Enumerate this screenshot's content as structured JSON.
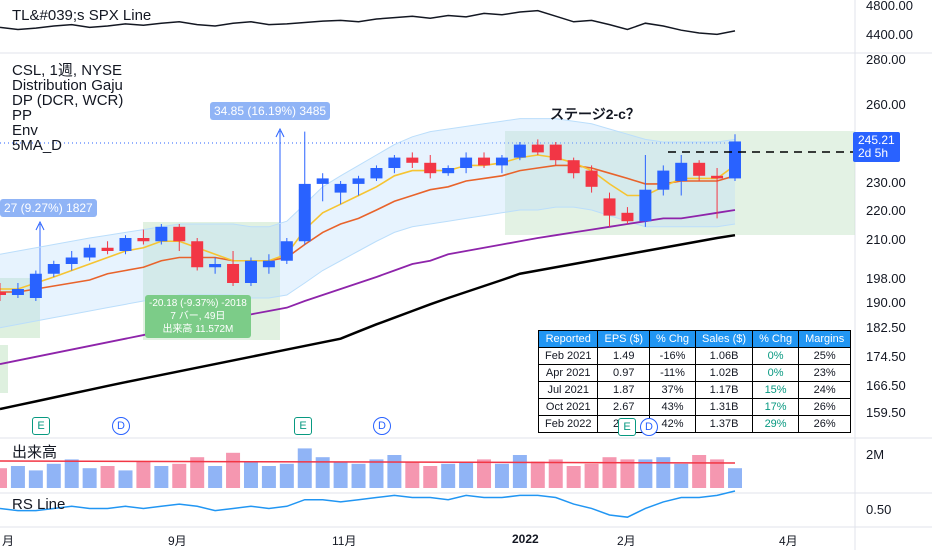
{
  "legend": {
    "spx_line": "TL&#039;s SPX Line",
    "symbol": "CSL, 1週, NYSE",
    "ind1": "Distribution Gaju",
    "ind2": "DP (DCR, WCR)",
    "ind3": "PP",
    "ind4": "Env",
    "ind5": "5MA_D",
    "volume": "出来高",
    "rs_line": "RS Line"
  },
  "annotation": "ステージ2-c？",
  "measures": {
    "m1": "34.85 (16.19%) 3485",
    "m2": "27 (9.27%) 1827",
    "m3_l1": "-20.18 (-9.37%) -2018",
    "m3_l2": "7 バー, 49日",
    "m3_l3": "出来高 11.572M"
  },
  "price_axis": [
    "4800.00",
    "4400.00",
    "280.00",
    "260.00",
    "230.00",
    "220.00",
    "210.00",
    "198.00",
    "190.00",
    "182.50",
    "174.50",
    "166.50",
    "159.50",
    "2M",
    "0.50"
  ],
  "last_price": {
    "value": "245.21",
    "countdown": "2d 5h"
  },
  "time_axis": [
    "月",
    "9月",
    "11月",
    "2022",
    "2月",
    "4月"
  ],
  "events": {
    "e": "E",
    "d": "D"
  },
  "earnings_table": {
    "headers": [
      "Reported",
      "EPS ($)",
      "% Chg",
      "Sales ($)",
      "% Chg",
      "Margins"
    ],
    "rows": [
      [
        "Feb 2021",
        "1.49",
        "-16%",
        "1.06B",
        "0%",
        "25%"
      ],
      [
        "Apr 2021",
        "0.97",
        "-11%",
        "1.02B",
        "0%",
        "23%"
      ],
      [
        "Jul 2021",
        "1.87",
        "37%",
        "1.17B",
        "15%",
        "24%"
      ],
      [
        "Oct 2021",
        "2.67",
        "43%",
        "1.31B",
        "17%",
        "26%"
      ],
      [
        "Feb 2022",
        "2.??",
        "42%",
        "1.37B",
        "29%",
        "26%"
      ]
    ]
  },
  "colors": {
    "up": "#2962ff",
    "down": "#f23645",
    "ema10": "#e8632b",
    "ema5": "#f6c431",
    "ma_purple": "#8e24aa",
    "ma_black": "#000000",
    "band": "#bbdefb",
    "vol_up": "#90b4f6",
    "vol_down": "#f597b0",
    "rs": "#2196f3"
  },
  "chart_data": {
    "type": "candlestick",
    "title": "CSL, 1週, NYSE",
    "ylim": [
      155,
      285
    ],
    "candles": [
      {
        "o": 193,
        "h": 196,
        "l": 190,
        "c": 192
      },
      {
        "o": 192,
        "h": 196,
        "l": 191,
        "c": 194
      },
      {
        "o": 191,
        "h": 200,
        "l": 190,
        "c": 199
      },
      {
        "o": 199,
        "h": 203,
        "l": 198,
        "c": 202
      },
      {
        "o": 202,
        "h": 206,
        "l": 200,
        "c": 204
      },
      {
        "o": 204,
        "h": 208,
        "l": 203,
        "c": 207
      },
      {
        "o": 207,
        "h": 209,
        "l": 205,
        "c": 206
      },
      {
        "o": 206,
        "h": 211,
        "l": 205,
        "c": 210
      },
      {
        "o": 210,
        "h": 213,
        "l": 208,
        "c": 209
      },
      {
        "o": 209,
        "h": 215,
        "l": 208,
        "c": 214
      },
      {
        "o": 214,
        "h": 215,
        "l": 206,
        "c": 209
      },
      {
        "o": 209,
        "h": 210,
        "l": 200,
        "c": 201
      },
      {
        "o": 201,
        "h": 204,
        "l": 199,
        "c": 202
      },
      {
        "o": 202,
        "h": 206,
        "l": 195,
        "c": 196
      },
      {
        "o": 196,
        "h": 204,
        "l": 195,
        "c": 203
      },
      {
        "o": 201,
        "h": 205,
        "l": 199,
        "c": 203
      },
      {
        "o": 203,
        "h": 210,
        "l": 202,
        "c": 209
      },
      {
        "o": 209,
        "h": 249,
        "l": 208,
        "c": 229
      },
      {
        "o": 229,
        "h": 233,
        "l": 223,
        "c": 231
      },
      {
        "o": 226,
        "h": 230,
        "l": 222,
        "c": 229
      },
      {
        "o": 229,
        "h": 232,
        "l": 225,
        "c": 231
      },
      {
        "o": 231,
        "h": 236,
        "l": 230,
        "c": 235
      },
      {
        "o": 235,
        "h": 240,
        "l": 233,
        "c": 239
      },
      {
        "o": 239,
        "h": 241,
        "l": 235,
        "c": 237
      },
      {
        "o": 237,
        "h": 240,
        "l": 231,
        "c": 233
      },
      {
        "o": 233,
        "h": 236,
        "l": 232,
        "c": 235
      },
      {
        "o": 235,
        "h": 241,
        "l": 233,
        "c": 239
      },
      {
        "o": 239,
        "h": 241,
        "l": 235,
        "c": 236
      },
      {
        "o": 236,
        "h": 240,
        "l": 233,
        "c": 239
      },
      {
        "o": 239,
        "h": 245,
        "l": 238,
        "c": 244
      },
      {
        "o": 244,
        "h": 246,
        "l": 240,
        "c": 241
      },
      {
        "o": 244,
        "h": 245,
        "l": 236,
        "c": 238
      },
      {
        "o": 238,
        "h": 239,
        "l": 231,
        "c": 233
      },
      {
        "o": 234,
        "h": 236,
        "l": 226,
        "c": 228
      },
      {
        "o": 224,
        "h": 226,
        "l": 214,
        "c": 218
      },
      {
        "o": 219,
        "h": 221,
        "l": 215,
        "c": 216
      },
      {
        "o": 216,
        "h": 240,
        "l": 214,
        "c": 227
      },
      {
        "o": 227,
        "h": 236,
        "l": 225,
        "c": 234
      },
      {
        "o": 230,
        "h": 240,
        "l": 225,
        "c": 237
      },
      {
        "o": 237,
        "h": 238,
        "l": 230,
        "c": 232
      },
      {
        "o": 232,
        "h": 235,
        "l": 217,
        "c": 231
      },
      {
        "o": 231,
        "h": 248,
        "l": 230,
        "c": 245.21
      }
    ],
    "ema5": [
      194,
      194,
      196,
      198,
      200,
      202,
      204,
      206,
      207,
      209,
      209,
      207,
      205,
      203,
      203,
      203,
      205,
      213,
      219,
      222,
      225,
      228,
      232,
      234,
      234,
      234,
      236,
      236,
      237,
      239,
      240,
      239,
      237,
      234,
      229,
      225,
      225,
      228,
      231,
      231,
      231,
      236
    ],
    "ema10": [
      193,
      193,
      194,
      195,
      196,
      197,
      199,
      200,
      201,
      203,
      204,
      204,
      204,
      203,
      203,
      203,
      204,
      208,
      212,
      215,
      217,
      220,
      223,
      225,
      227,
      228,
      230,
      231,
      232,
      234,
      235,
      236,
      236,
      235,
      233,
      231,
      229,
      229,
      230,
      230,
      230,
      232
    ],
    "ma_purple": [
      172,
      173,
      174,
      175,
      176,
      177,
      178,
      179,
      180,
      181,
      182,
      183,
      184,
      185,
      186,
      187,
      188,
      190,
      192,
      194,
      196,
      198,
      200,
      202,
      203,
      205,
      206,
      207,
      208,
      209,
      210,
      211,
      212,
      213,
      214,
      215,
      216,
      217,
      217,
      218,
      219,
      220
    ],
    "ma_black": [
      160,
      161,
      162,
      163,
      164,
      165,
      166,
      167,
      168,
      169,
      170,
      171,
      172,
      173,
      174,
      175,
      176,
      177,
      178,
      179,
      181,
      183,
      185,
      187,
      189,
      191,
      193,
      195,
      197,
      199,
      200,
      201,
      202,
      203,
      204,
      205,
      206,
      207,
      208,
      209,
      210,
      211
    ],
    "band_upper": [
      205,
      206,
      207,
      208,
      209,
      210,
      211,
      212,
      213,
      214,
      215,
      215,
      215,
      215,
      214,
      214,
      216,
      222,
      228,
      232,
      236,
      240,
      244,
      247,
      249,
      250,
      251,
      252,
      253,
      254,
      254,
      254,
      253,
      252,
      250,
      248,
      246,
      245,
      245,
      245,
      245,
      246
    ],
    "band_lower": [
      182,
      183,
      184,
      185,
      186,
      187,
      188,
      189,
      190,
      191,
      192,
      192,
      192,
      192,
      191,
      191,
      192,
      196,
      200,
      203,
      206,
      209,
      212,
      214,
      215,
      216,
      217,
      218,
      219,
      220,
      220,
      221,
      221,
      220,
      218,
      216,
      214,
      214,
      214,
      214,
      214,
      215
    ],
    "spx": [
      4480,
      4450,
      4470,
      4500,
      4520,
      4480,
      4500,
      4530,
      4510,
      4540,
      4560,
      4520,
      4500,
      4540,
      4560,
      4520,
      4530,
      4550,
      4570,
      4580,
      4560,
      4600,
      4620,
      4640,
      4610,
      4650,
      4630,
      4680,
      4660,
      4700,
      4720,
      4640,
      4560,
      4580,
      4520,
      4450,
      4540,
      4500,
      4440,
      4400,
      4380,
      4430
    ],
    "volume": [
      0.9,
      1.0,
      0.8,
      1.1,
      1.3,
      0.9,
      1.0,
      0.8,
      1.2,
      1.0,
      1.1,
      1.4,
      1.0,
      1.6,
      1.2,
      1.0,
      1.1,
      1.8,
      1.4,
      1.2,
      1.1,
      1.3,
      1.5,
      1.2,
      1.0,
      1.1,
      1.2,
      1.3,
      1.1,
      1.5,
      1.2,
      1.3,
      1.0,
      1.1,
      1.4,
      1.3,
      1.3,
      1.4,
      1.1,
      1.5,
      1.3,
      0.9
    ],
    "rs": [
      0.58,
      0.57,
      0.57,
      0.58,
      0.59,
      0.58,
      0.58,
      0.59,
      0.58,
      0.59,
      0.6,
      0.59,
      0.57,
      0.58,
      0.59,
      0.58,
      0.59,
      0.62,
      0.62,
      0.61,
      0.62,
      0.63,
      0.64,
      0.63,
      0.63,
      0.62,
      0.64,
      0.63,
      0.63,
      0.64,
      0.64,
      0.63,
      0.6,
      0.58,
      0.55,
      0.54,
      0.58,
      0.61,
      0.63,
      0.63,
      0.64,
      0.66
    ]
  }
}
